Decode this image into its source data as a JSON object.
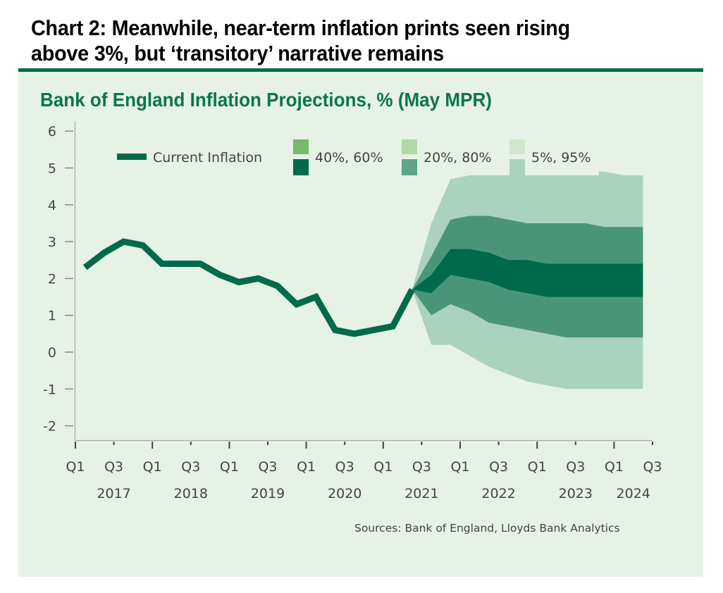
{
  "headline": {
    "line1": "Chart 2: Meanwhile, near-term inflation prints seen rising",
    "line2": "above 3%, but ‘transitory’ narrative remains"
  },
  "sources": "Sources: Bank of England, Lloyds Bank Analytics",
  "colors": {
    "accent": "#03694a",
    "panel_bg": "#e6f2e5",
    "title_green": "#0b7550",
    "line": "#006a4a",
    "band_40_60": "#006a4a",
    "band_20_80": "#4a957a",
    "band_5_95": "#abd2bf",
    "legend_top_40_60": "#78b96e",
    "legend_top_20_80": "#afd9a6",
    "legend_top_5_95": "#cfe8ca",
    "legend_bottom_40_60": "#006a4a",
    "legend_bottom_20_80": "#5ea58a",
    "legend_bottom_5_95": "#abd2bf"
  },
  "chart_data": {
    "type": "area",
    "title": "Bank of England Inflation Projections, % (May MPR)",
    "xlabel": "",
    "ylabel": "",
    "ylim": [
      -2,
      6
    ],
    "yticks": [
      "6",
      "5",
      "4",
      "3",
      "2",
      "1",
      "0",
      "-1",
      "-2"
    ],
    "ytick_values": [
      6,
      5,
      4,
      3,
      2,
      1,
      0,
      -1,
      -2
    ],
    "grid": false,
    "legend_position": "top",
    "x_quarters": [
      "Q1 2017",
      "Q2 2017",
      "Q3 2017",
      "Q4 2017",
      "Q1 2018",
      "Q2 2018",
      "Q3 2018",
      "Q4 2018",
      "Q1 2019",
      "Q2 2019",
      "Q3 2019",
      "Q4 2019",
      "Q1 2020",
      "Q2 2020",
      "Q3 2020",
      "Q4 2020",
      "Q1 2021",
      "Q2 2021",
      "Q3 2021",
      "Q4 2021",
      "Q1 2022",
      "Q2 2022",
      "Q3 2022",
      "Q4 2022",
      "Q1 2023",
      "Q2 2023",
      "Q3 2023",
      "Q4 2023",
      "Q1 2024",
      "Q2 2024"
    ],
    "xtick_labels": [
      "Q1",
      "Q3",
      "Q1",
      "Q3",
      "Q1",
      "Q3",
      "Q1",
      "Q3",
      "Q1",
      "Q3",
      "Q1",
      "Q3",
      "Q1",
      "Q3",
      "Q1",
      "Q3"
    ],
    "year_labels": [
      "2017",
      "2018",
      "2019",
      "2020",
      "2021",
      "2022",
      "2023",
      "2024"
    ],
    "legend": [
      {
        "key": "line",
        "label": "Current Inflation"
      },
      {
        "key": "p40_60",
        "label": "40%, 60%"
      },
      {
        "key": "p20_80",
        "label": "20%, 80%"
      },
      {
        "key": "p5_95",
        "label": "5%, 95%"
      }
    ],
    "series": [
      {
        "name": "Current Inflation",
        "type": "line",
        "x": [
          "Q1 2017",
          "Q2 2017",
          "Q3 2017",
          "Q4 2017",
          "Q1 2018",
          "Q2 2018",
          "Q3 2018",
          "Q4 2018",
          "Q1 2019",
          "Q2 2019",
          "Q3 2019",
          "Q4 2019",
          "Q1 2020",
          "Q2 2020",
          "Q3 2020",
          "Q4 2020",
          "Q1 2021",
          "Q2 2021"
        ],
        "values": [
          2.3,
          2.7,
          3.0,
          2.9,
          2.4,
          2.4,
          2.4,
          2.1,
          1.9,
          2.0,
          1.8,
          1.3,
          1.5,
          0.6,
          0.5,
          0.6,
          0.7,
          1.7
        ]
      }
    ],
    "fan": {
      "x": [
        "Q2 2021",
        "Q3 2021",
        "Q4 2021",
        "Q1 2022",
        "Q2 2022",
        "Q3 2022",
        "Q4 2022",
        "Q1 2023",
        "Q2 2023",
        "Q3 2023",
        "Q4 2023",
        "Q1 2024",
        "Q2 2024"
      ],
      "p5": [
        1.7,
        0.2,
        0.2,
        -0.1,
        -0.4,
        -0.6,
        -0.8,
        -0.9,
        -1.0,
        -1.0,
        -1.0,
        -1.0,
        -1.0
      ],
      "p20": [
        1.7,
        1.0,
        1.3,
        1.1,
        0.8,
        0.7,
        0.6,
        0.5,
        0.4,
        0.4,
        0.4,
        0.4,
        0.4
      ],
      "p40": [
        1.7,
        1.6,
        2.1,
        2.0,
        1.9,
        1.7,
        1.6,
        1.5,
        1.5,
        1.5,
        1.5,
        1.5,
        1.5
      ],
      "p60": [
        1.7,
        2.1,
        2.8,
        2.8,
        2.7,
        2.5,
        2.5,
        2.4,
        2.4,
        2.4,
        2.4,
        2.4,
        2.4
      ],
      "p80": [
        1.7,
        2.6,
        3.6,
        3.7,
        3.7,
        3.6,
        3.5,
        3.5,
        3.5,
        3.5,
        3.4,
        3.4,
        3.4
      ],
      "p95": [
        1.7,
        3.5,
        4.7,
        4.8,
        4.8,
        4.9,
        4.9,
        4.9,
        4.9,
        4.9,
        4.9,
        4.8,
        4.8
      ]
    }
  }
}
